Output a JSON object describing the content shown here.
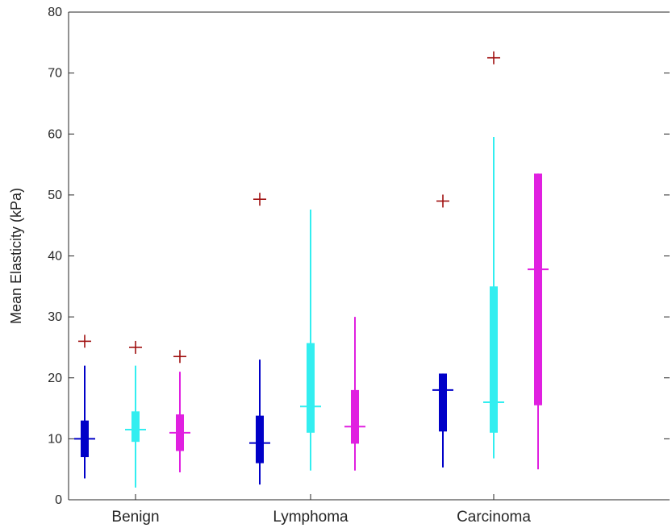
{
  "chart_data": {
    "type": "box",
    "ylabel": "Mean Elasticity (kPa)",
    "ylim": [
      0,
      80
    ],
    "yticks": [
      0,
      10,
      20,
      30,
      40,
      50,
      60,
      70,
      80
    ],
    "grid": false,
    "categories": [
      "Benign",
      "Lymphoma",
      "Carcinoma"
    ],
    "series": [
      {
        "color": "#0000c8",
        "boxes": [
          {
            "whisker_low": 3.5,
            "q1": 7,
            "median": 10,
            "q3": 13,
            "whisker_high": 22,
            "outliers": [
              26
            ]
          },
          {
            "whisker_low": 2.5,
            "q1": 6,
            "median": 9.3,
            "q3": 13.8,
            "whisker_high": 23,
            "outliers": [
              49.3
            ]
          },
          {
            "whisker_low": 5.3,
            "q1": 11.2,
            "median": 18,
            "q3": 20.7,
            "whisker_high": 20.7,
            "outliers": [
              49
            ]
          }
        ]
      },
      {
        "color": "#33eef0",
        "boxes": [
          {
            "whisker_low": 2,
            "q1": 9.5,
            "median": 11.5,
            "q3": 14.5,
            "whisker_high": 22,
            "outliers": [
              25
            ]
          },
          {
            "whisker_low": 4.8,
            "q1": 11,
            "median": 15.3,
            "q3": 25.7,
            "whisker_high": 47.6,
            "outliers": []
          },
          {
            "whisker_low": 6.8,
            "q1": 11,
            "median": 16,
            "q3": 35,
            "whisker_high": 59.5,
            "outliers": [
              72.5
            ]
          }
        ]
      },
      {
        "color": "#e020e0",
        "boxes": [
          {
            "whisker_low": 4.5,
            "q1": 8,
            "median": 11,
            "q3": 14,
            "whisker_high": 21,
            "outliers": [
              23.5
            ]
          },
          {
            "whisker_low": 4.8,
            "q1": 9.2,
            "median": 12,
            "q3": 18,
            "whisker_high": 30,
            "outliers": []
          },
          {
            "whisker_low": 5,
            "q1": 15.5,
            "median": 37.8,
            "q3": 53.5,
            "whisker_high": 53.5,
            "outliers": []
          }
        ]
      }
    ],
    "outlier_color": "#a01010"
  }
}
